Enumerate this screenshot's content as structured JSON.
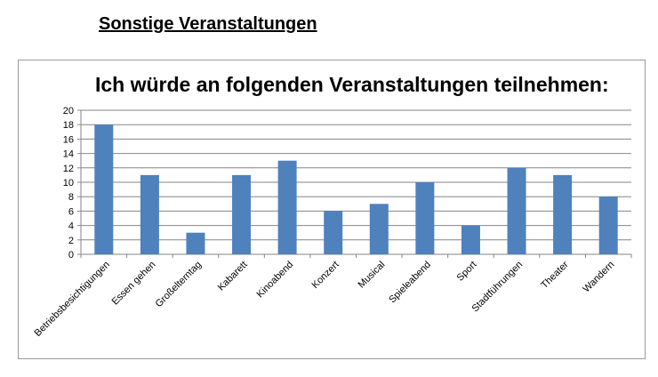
{
  "page_heading": "Sonstige Veranstaltungen",
  "colors": {
    "bar": "#4f81bd",
    "grid": "#868686",
    "axis": "#868686"
  },
  "chart_data": {
    "type": "bar",
    "title": "Ich würde an folgenden Veranstaltungen teilnehmen:",
    "xlabel": "",
    "ylabel": "",
    "categories": [
      "Betriebsbesichtigungen",
      "Essen gehen",
      "Großelterntag",
      "Kabarett",
      "Kinoabend",
      "Konzert",
      "Musical",
      "Spieleabend",
      "Sport",
      "Stadtführungen",
      "Theater",
      "Wandern"
    ],
    "values": [
      18,
      11,
      3,
      11,
      13,
      6,
      7,
      10,
      4,
      12,
      11,
      8
    ],
    "ylim": [
      0,
      20
    ],
    "yticks": [
      0,
      2,
      4,
      6,
      8,
      10,
      12,
      14,
      16,
      18,
      20
    ],
    "grid": true,
    "legend": "none"
  }
}
